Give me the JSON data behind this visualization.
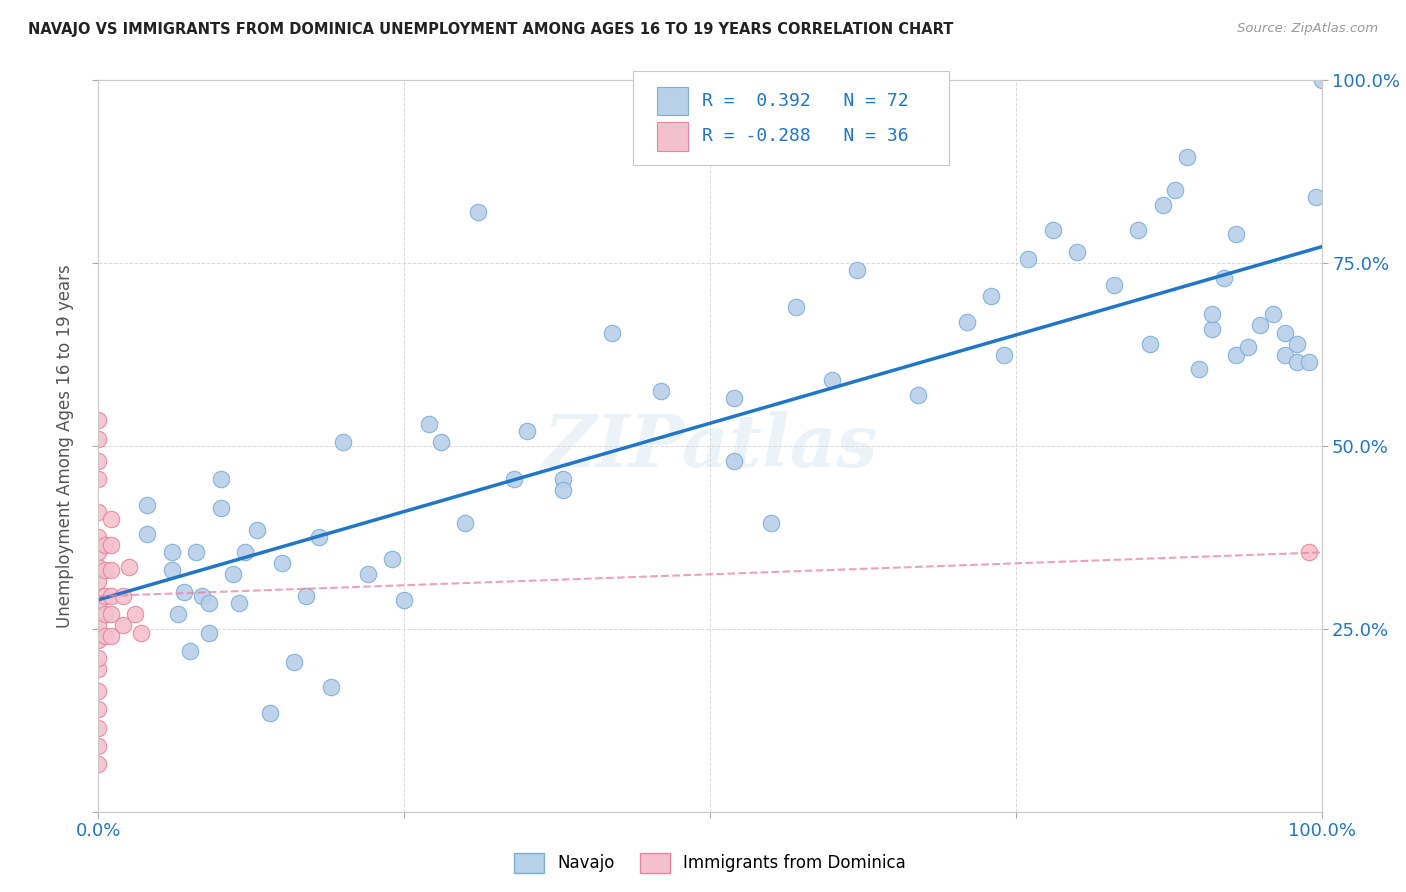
{
  "title": "NAVAJO VS IMMIGRANTS FROM DOMINICA UNEMPLOYMENT AMONG AGES 16 TO 19 YEARS CORRELATION CHART",
  "source": "Source: ZipAtlas.com",
  "ylabel": "Unemployment Among Ages 16 to 19 years",
  "xlim": [
    0.0,
    1.0
  ],
  "ylim": [
    0.0,
    1.0
  ],
  "navajo_color": "#b8d0e8",
  "navajo_edge_color": "#7aaedb",
  "dominica_color": "#f5c0ce",
  "dominica_edge_color": "#e8849e",
  "regression_navajo_color": "#2176c7",
  "regression_dominica_color": "#e8849e",
  "watermark": "ZIPatlas",
  "legend_R_navajo": "0.392",
  "legend_N_navajo": "72",
  "legend_R_dominica": "-0.288",
  "legend_N_dominica": "36",
  "navajo_x": [
    0.04,
    0.04,
    0.06,
    0.06,
    0.065,
    0.07,
    0.075,
    0.08,
    0.085,
    0.09,
    0.09,
    0.1,
    0.1,
    0.11,
    0.115,
    0.12,
    0.13,
    0.14,
    0.15,
    0.16,
    0.17,
    0.18,
    0.19,
    0.2,
    0.22,
    0.24,
    0.25,
    0.27,
    0.28,
    0.3,
    0.31,
    0.34,
    0.35,
    0.38,
    0.38,
    0.42,
    0.46,
    0.52,
    0.52,
    0.55,
    0.57,
    0.6,
    0.62,
    0.67,
    0.71,
    0.73,
    0.74,
    0.76,
    0.78,
    0.8,
    0.83,
    0.85,
    0.86,
    0.87,
    0.88,
    0.89,
    0.9,
    0.91,
    0.91,
    0.92,
    0.93,
    0.93,
    0.94,
    0.95,
    0.96,
    0.97,
    0.97,
    0.98,
    0.98,
    0.99,
    0.995,
    1.0
  ],
  "navajo_y": [
    0.38,
    0.42,
    0.355,
    0.33,
    0.27,
    0.3,
    0.22,
    0.355,
    0.295,
    0.285,
    0.245,
    0.455,
    0.415,
    0.325,
    0.285,
    0.355,
    0.385,
    0.135,
    0.34,
    0.205,
    0.295,
    0.375,
    0.17,
    0.505,
    0.325,
    0.345,
    0.29,
    0.53,
    0.505,
    0.395,
    0.82,
    0.455,
    0.52,
    0.455,
    0.44,
    0.655,
    0.575,
    0.565,
    0.48,
    0.395,
    0.69,
    0.59,
    0.74,
    0.57,
    0.67,
    0.705,
    0.625,
    0.755,
    0.795,
    0.765,
    0.72,
    0.795,
    0.64,
    0.83,
    0.85,
    0.895,
    0.605,
    0.66,
    0.68,
    0.73,
    0.79,
    0.625,
    0.635,
    0.665,
    0.68,
    0.625,
    0.655,
    0.64,
    0.615,
    0.615,
    0.84,
    1.0
  ],
  "dominica_x": [
    0.0,
    0.0,
    0.0,
    0.0,
    0.0,
    0.0,
    0.0,
    0.0,
    0.0,
    0.0,
    0.0,
    0.0,
    0.0,
    0.0,
    0.0,
    0.0,
    0.0,
    0.0,
    0.0,
    0.005,
    0.005,
    0.005,
    0.005,
    0.005,
    0.01,
    0.01,
    0.01,
    0.01,
    0.01,
    0.01,
    0.02,
    0.02,
    0.025,
    0.03,
    0.035,
    0.99
  ],
  "dominica_y": [
    0.065,
    0.09,
    0.115,
    0.14,
    0.165,
    0.195,
    0.21,
    0.235,
    0.255,
    0.285,
    0.315,
    0.335,
    0.355,
    0.375,
    0.41,
    0.455,
    0.48,
    0.51,
    0.535,
    0.24,
    0.27,
    0.295,
    0.33,
    0.365,
    0.24,
    0.27,
    0.295,
    0.33,
    0.365,
    0.4,
    0.255,
    0.295,
    0.335,
    0.27,
    0.245,
    0.355
  ],
  "background_color": "#ffffff",
  "grid_color": "#d0d0d0"
}
